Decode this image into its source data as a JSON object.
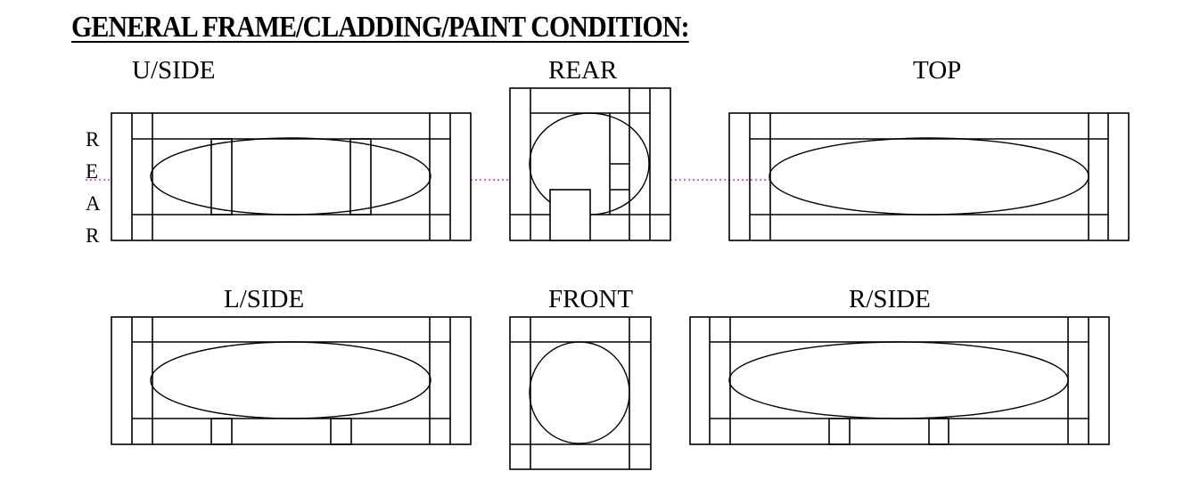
{
  "heading": "GENERAL FRAME/CLADDING/PAINT CONDITION:",
  "views": {
    "underside": "U/SIDE",
    "rear": "REAR",
    "top": "TOP",
    "left_side": "L/SIDE",
    "front": "FRONT",
    "right_side": "R/SIDE"
  },
  "side_marker": {
    "letters": [
      "R",
      "E",
      "A",
      "R"
    ]
  },
  "colors": {
    "line": "#000000",
    "dotted_guide": "#cc00cc"
  }
}
